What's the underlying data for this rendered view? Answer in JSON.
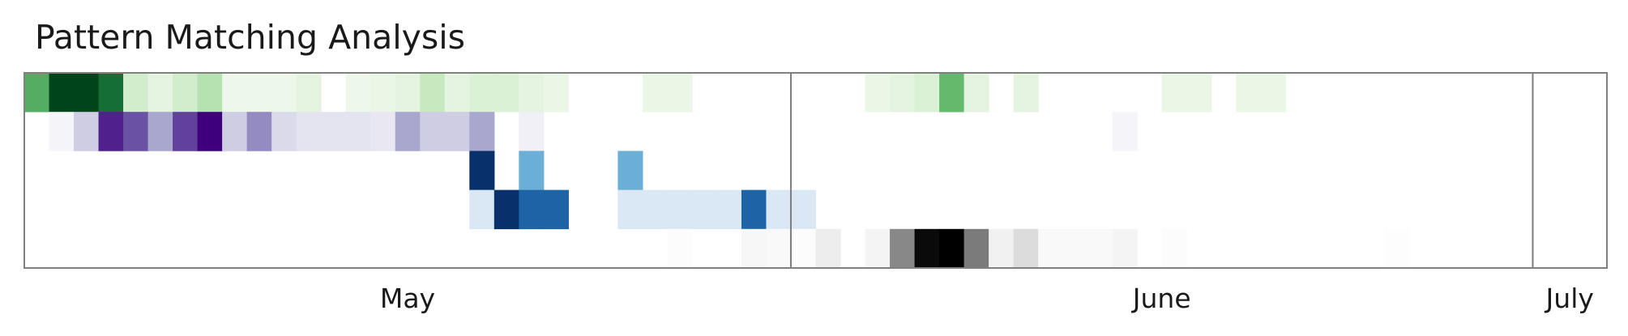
{
  "title": "Pattern Matching Analysis",
  "chart_data": {
    "type": "heatmap",
    "title": "Pattern Matching Analysis",
    "x_unit": "day",
    "x_start": "2009-05-01",
    "n_columns": 64,
    "months": [
      "May",
      "June",
      "July"
    ],
    "month_boundaries": [
      "2009-06-01",
      "2009-07-01"
    ],
    "rows": [
      {
        "colormap": "Greens",
        "colors": [
          "#f7fcf5",
          "#c7e9c0",
          "#74c476",
          "#238b45",
          "#00441b"
        ],
        "values": [
          0.6,
          1.0,
          1.0,
          0.85,
          0.2,
          0.1,
          0.2,
          0.3,
          0.05,
          0.05,
          0.05,
          0.1,
          0,
          0.05,
          0.07,
          0.1,
          0.25,
          0.1,
          0.15,
          0.15,
          0.1,
          0.07,
          0,
          0,
          0,
          0.07,
          0.07,
          0,
          0,
          0,
          0,
          0,
          0,
          0,
          0.07,
          0.1,
          0.15,
          0.55,
          0.1,
          0,
          0.1,
          0,
          0,
          0,
          0,
          0,
          0.07,
          0.07,
          0,
          0.07,
          0.07,
          0,
          0,
          0,
          0,
          0,
          0,
          0,
          0,
          0,
          0,
          0,
          0,
          0
        ]
      },
      {
        "colormap": "Purples",
        "colors": [
          "#fcfbfd",
          "#dadaeb",
          "#9e9ac8",
          "#6a51a3",
          "#3f007d"
        ],
        "values": [
          0,
          0.05,
          0.3,
          0.9,
          0.75,
          0.45,
          0.8,
          1.0,
          0.3,
          0.55,
          0.25,
          0.18,
          0.18,
          0.18,
          0.15,
          0.45,
          0.3,
          0.3,
          0.45,
          0,
          0.08,
          0,
          0,
          0,
          0,
          0,
          0,
          0,
          0,
          0,
          0,
          0,
          0,
          0,
          0,
          0,
          0,
          0,
          0,
          0,
          0,
          0,
          0,
          0,
          0.05,
          0,
          0,
          0,
          0,
          0,
          0,
          0,
          0,
          0,
          0,
          0,
          0,
          0,
          0,
          0,
          0,
          0,
          0,
          0
        ]
      },
      {
        "colormap": "Blues",
        "colors": [
          "#f7fbff",
          "#c6dbef",
          "#6baed6",
          "#2171b5",
          "#08306b"
        ],
        "values": [
          0,
          0,
          0,
          0,
          0,
          0,
          0,
          0,
          0,
          0,
          0,
          0,
          0,
          0,
          0,
          0,
          0,
          0,
          1.0,
          0,
          0.5,
          0,
          0,
          0,
          0.5,
          0,
          0,
          0,
          0,
          0,
          0,
          0,
          0,
          0,
          0,
          0,
          0,
          0,
          0,
          0,
          0,
          0,
          0,
          0,
          0,
          0,
          0,
          0,
          0,
          0,
          0,
          0,
          0,
          0,
          0,
          0,
          0,
          0,
          0,
          0,
          0,
          0,
          0,
          0
        ]
      },
      {
        "colormap": "Blues",
        "colors": [
          "#f7fbff",
          "#c6dbef",
          "#6baed6",
          "#2171b5",
          "#08306b"
        ],
        "values": [
          0,
          0,
          0,
          0,
          0,
          0,
          0,
          0,
          0,
          0,
          0,
          0,
          0,
          0,
          0,
          0,
          0,
          0,
          0.15,
          1.0,
          0.8,
          0.8,
          0,
          0,
          0.15,
          0.15,
          0.15,
          0.15,
          0.15,
          0.8,
          0.15,
          0.15,
          0,
          0,
          0,
          0,
          0,
          0,
          0,
          0,
          0,
          0,
          0,
          0,
          0,
          0,
          0,
          0,
          0,
          0,
          0,
          0,
          0,
          0,
          0,
          0,
          0,
          0,
          0,
          0,
          0,
          0,
          0,
          0,
          0
        ]
      },
      {
        "colormap": "Greys",
        "colors": [
          "#ffffff",
          "#d9d9d9",
          "#969696",
          "#525252",
          "#000000"
        ],
        "values": [
          0,
          0,
          0,
          0,
          0,
          0,
          0,
          0,
          0,
          0,
          0,
          0,
          0,
          0,
          0,
          0,
          0,
          0,
          0,
          0,
          0,
          0,
          0,
          0,
          0,
          0,
          0.02,
          0,
          0,
          0.05,
          0.04,
          0.02,
          0.12,
          0,
          0.07,
          0.55,
          0.97,
          1.0,
          0.6,
          0.09,
          0.23,
          0.04,
          0.04,
          0.04,
          0.07,
          0,
          0.02,
          0,
          0,
          0,
          0,
          0,
          0,
          0,
          0,
          0.01,
          0,
          0,
          0,
          0,
          0,
          0,
          0,
          0
        ]
      }
    ]
  }
}
